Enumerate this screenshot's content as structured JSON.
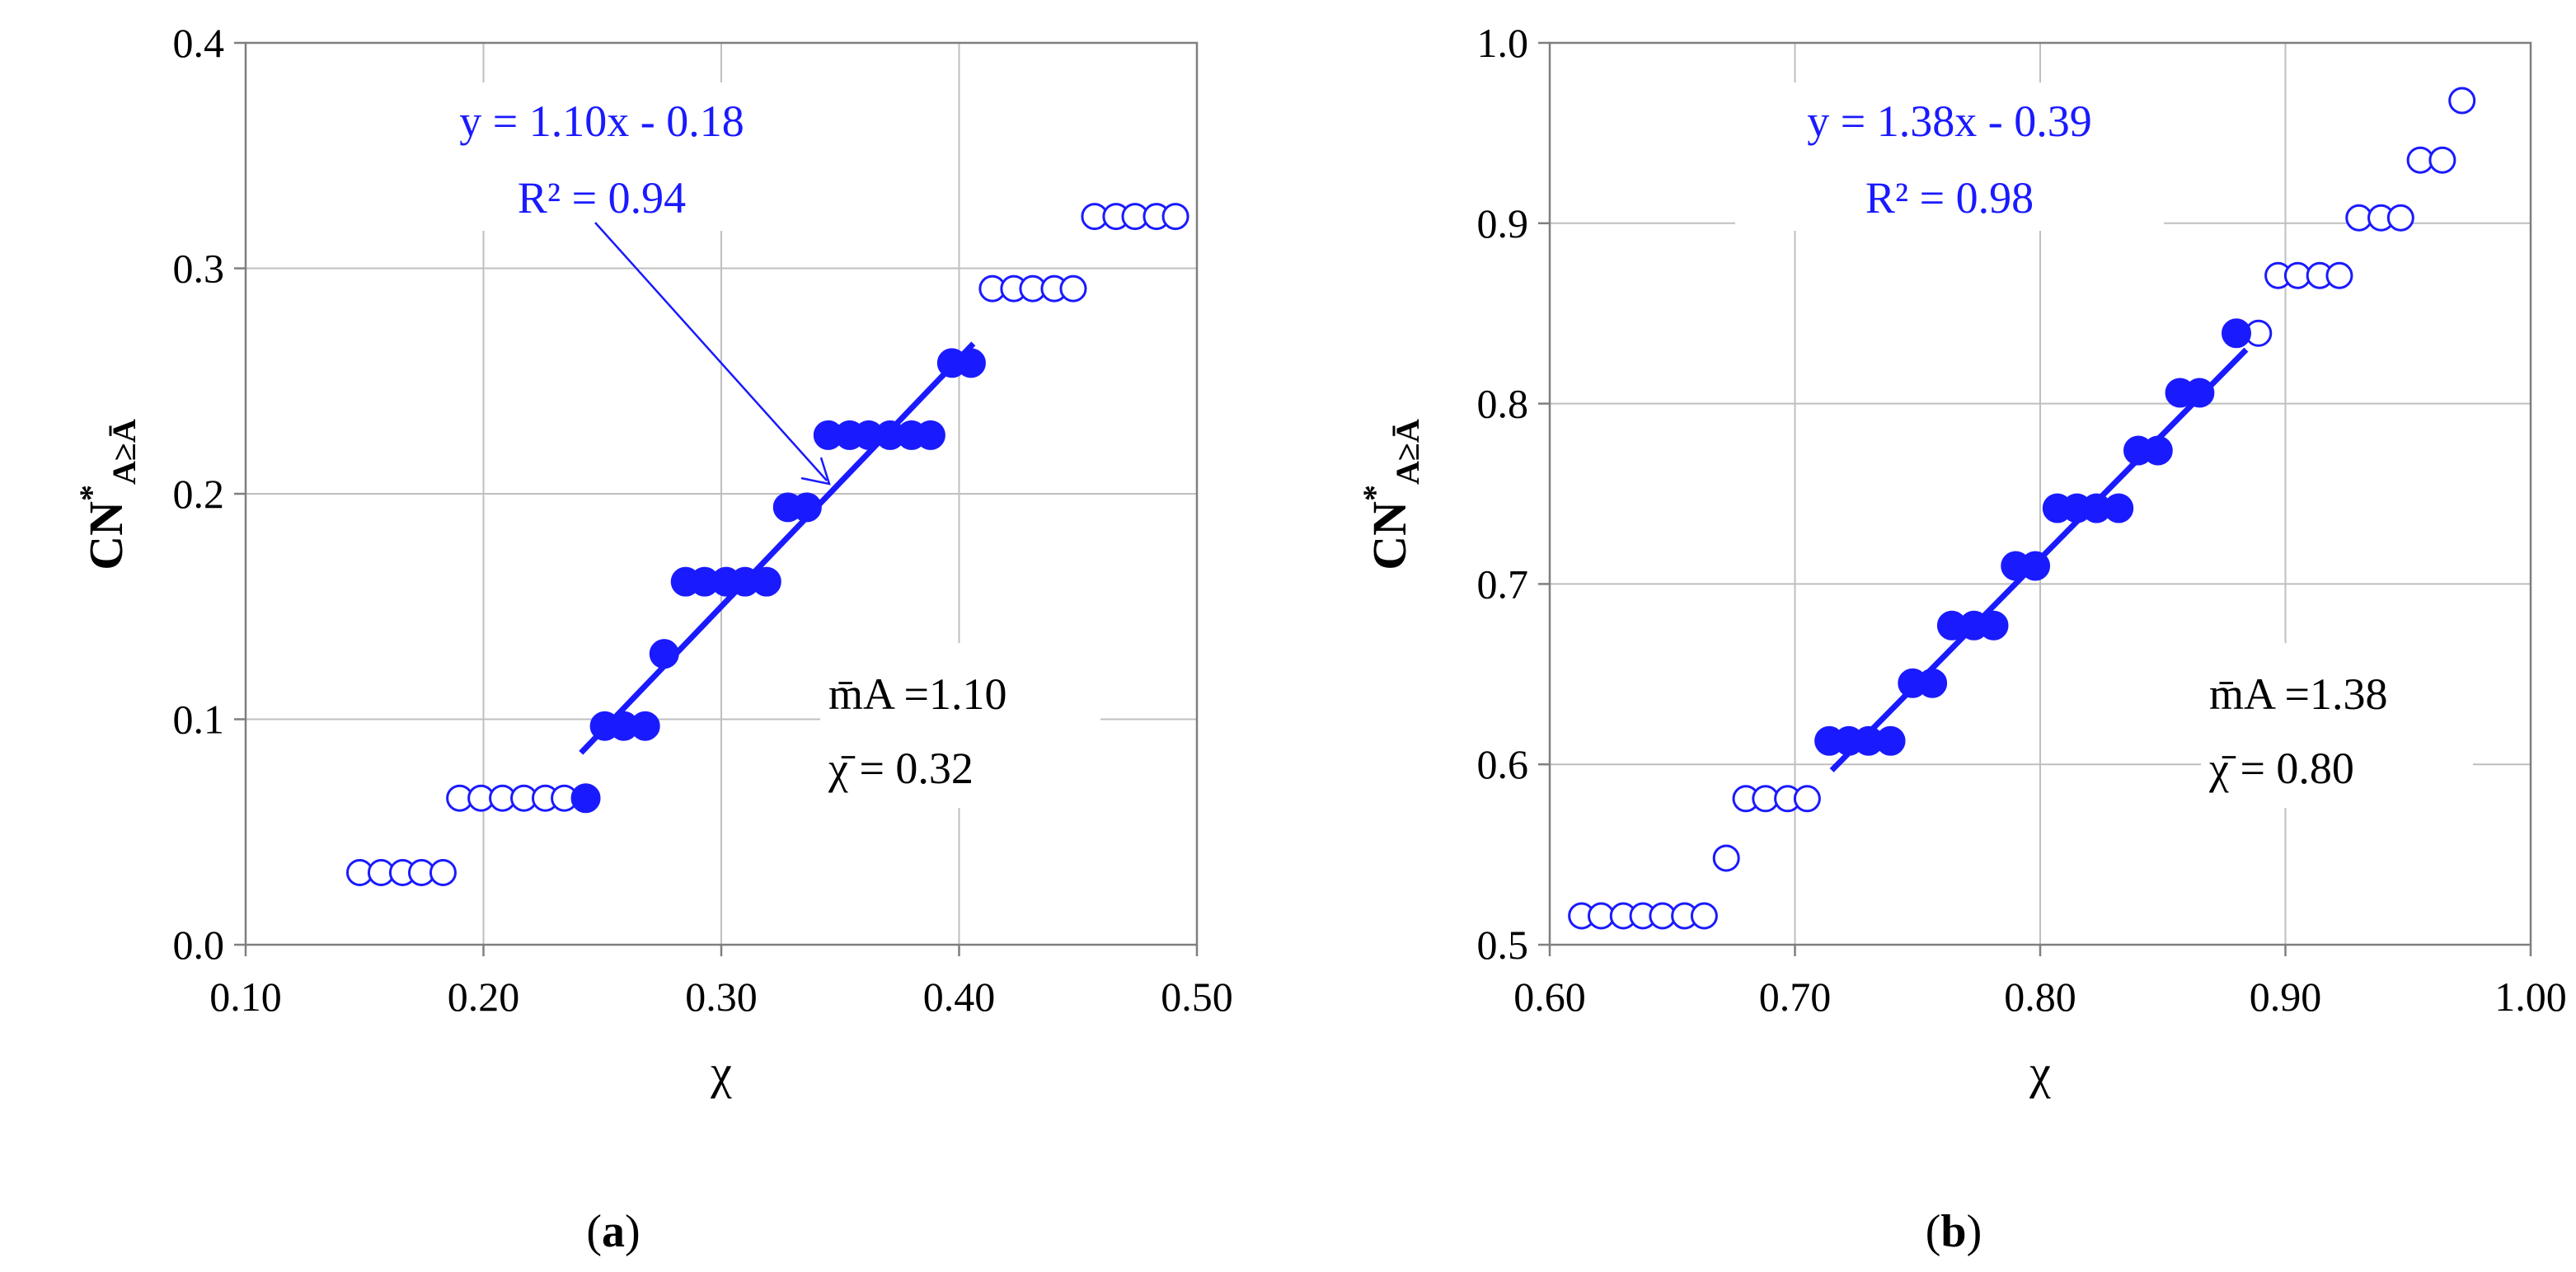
{
  "chart_data": [
    {
      "type": "scatter",
      "panel_label": "a",
      "xlabel": "χ",
      "ylabel": "CN*A≥Ā",
      "xlim": [
        0.1,
        0.5
      ],
      "ylim": [
        0.0,
        0.4
      ],
      "x_ticks": [
        "0.10",
        "0.20",
        "0.30",
        "0.40",
        "0.50"
      ],
      "y_ticks": [
        "0.0",
        "0.1",
        "0.2",
        "0.3",
        "0.4"
      ],
      "grid": true,
      "point_color": "#1a1aff",
      "series": [
        {
          "marker": "open",
          "points": [
            [
              0.148,
              0.032
            ],
            [
              0.157,
              0.032
            ],
            [
              0.166,
              0.032
            ],
            [
              0.174,
              0.032
            ],
            [
              0.183,
              0.032
            ],
            [
              0.19,
              0.065
            ],
            [
              0.199,
              0.065
            ],
            [
              0.208,
              0.065
            ],
            [
              0.217,
              0.065
            ],
            [
              0.226,
              0.065
            ],
            [
              0.234,
              0.065
            ],
            [
              0.414,
              0.291
            ],
            [
              0.423,
              0.291
            ],
            [
              0.431,
              0.291
            ],
            [
              0.44,
              0.291
            ],
            [
              0.448,
              0.291
            ],
            [
              0.457,
              0.323
            ],
            [
              0.466,
              0.323
            ],
            [
              0.474,
              0.323
            ],
            [
              0.483,
              0.323
            ],
            [
              0.491,
              0.323
            ]
          ]
        },
        {
          "marker": "filled",
          "points": [
            [
              0.243,
              0.065
            ],
            [
              0.251,
              0.097
            ],
            [
              0.259,
              0.097
            ],
            [
              0.268,
              0.097
            ],
            [
              0.276,
              0.129
            ],
            [
              0.285,
              0.161
            ],
            [
              0.293,
              0.161
            ],
            [
              0.302,
              0.161
            ],
            [
              0.31,
              0.161
            ],
            [
              0.319,
              0.161
            ],
            [
              0.328,
              0.194
            ],
            [
              0.336,
              0.194
            ],
            [
              0.345,
              0.226
            ],
            [
              0.354,
              0.226
            ],
            [
              0.362,
              0.226
            ],
            [
              0.371,
              0.226
            ],
            [
              0.38,
              0.226
            ],
            [
              0.388,
              0.226
            ],
            [
              0.397,
              0.258
            ],
            [
              0.405,
              0.258
            ]
          ]
        }
      ],
      "fit": {
        "x_range": [
          0.241,
          0.406
        ],
        "slope": 1.1,
        "intercept": -0.18
      },
      "annotations": {
        "equation": "y = 1.10x - 0.18",
        "r2": "R² = 0.94",
        "m_text": "m̄A =1.10",
        "chi_text": "χ̄ = 0.32"
      }
    },
    {
      "type": "scatter",
      "panel_label": "b",
      "xlabel": "χ",
      "ylabel": "CN*A≥Ā",
      "xlim": [
        0.6,
        1.0
      ],
      "ylim": [
        0.5,
        1.0
      ],
      "x_ticks": [
        "0.60",
        "0.70",
        "0.80",
        "0.90",
        "1.00"
      ],
      "y_ticks": [
        "0.5",
        "0.6",
        "0.7",
        "0.8",
        "0.9",
        "1.0"
      ],
      "grid": true,
      "point_color": "#1a1aff",
      "series": [
        {
          "marker": "open",
          "points": [
            [
              0.613,
              0.516
            ],
            [
              0.621,
              0.516
            ],
            [
              0.63,
              0.516
            ],
            [
              0.638,
              0.516
            ],
            [
              0.646,
              0.516
            ],
            [
              0.655,
              0.516
            ],
            [
              0.663,
              0.516
            ],
            [
              0.672,
              0.548
            ],
            [
              0.68,
              0.581
            ],
            [
              0.688,
              0.581
            ],
            [
              0.697,
              0.581
            ],
            [
              0.705,
              0.581
            ],
            [
              0.889,
              0.839
            ],
            [
              0.897,
              0.871
            ],
            [
              0.905,
              0.871
            ],
            [
              0.914,
              0.871
            ],
            [
              0.922,
              0.871
            ],
            [
              0.93,
              0.903
            ],
            [
              0.939,
              0.903
            ],
            [
              0.947,
              0.903
            ],
            [
              0.955,
              0.935
            ],
            [
              0.964,
              0.935
            ],
            [
              0.972,
              0.968
            ]
          ]
        },
        {
          "marker": "filled",
          "points": [
            [
              0.714,
              0.613
            ],
            [
              0.722,
              0.613
            ],
            [
              0.73,
              0.613
            ],
            [
              0.739,
              0.613
            ],
            [
              0.748,
              0.645
            ],
            [
              0.756,
              0.645
            ],
            [
              0.764,
              0.677
            ],
            [
              0.773,
              0.677
            ],
            [
              0.781,
              0.677
            ],
            [
              0.79,
              0.71
            ],
            [
              0.798,
              0.71
            ],
            [
              0.807,
              0.742
            ],
            [
              0.815,
              0.742
            ],
            [
              0.823,
              0.742
            ],
            [
              0.832,
              0.742
            ],
            [
              0.84,
              0.774
            ],
            [
              0.848,
              0.774
            ],
            [
              0.857,
              0.806
            ],
            [
              0.865,
              0.806
            ],
            [
              0.88,
              0.839
            ]
          ]
        }
      ],
      "fit": {
        "x_range": [
          0.715,
          0.884
        ],
        "slope": 1.38,
        "intercept": -0.39
      },
      "annotations": {
        "equation": "y = 1.38x - 0.39",
        "r2": "R² = 0.98",
        "m_text": "m̄A =1.38",
        "chi_text": "χ̄ = 0.80"
      }
    }
  ]
}
